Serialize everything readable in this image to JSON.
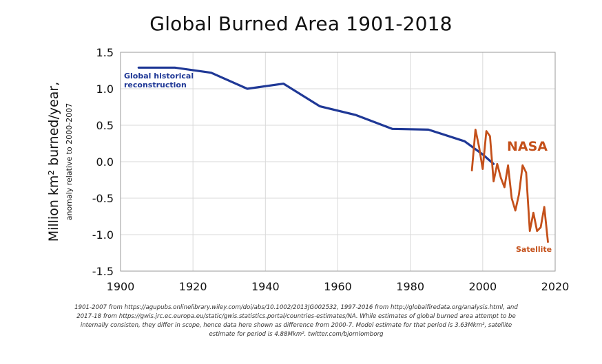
{
  "colors": {
    "reconstruction": "#1f3896",
    "satellite": "#c4501a",
    "grid": "#d9d9d9",
    "axis": "#9a9a9a"
  },
  "chart_data": {
    "type": "line",
    "title": "Global Burned Area 1901-2018",
    "ylabel": "Million km² burned/year,",
    "ylabel_sub": "anomaly relative to 2000-2007",
    "xlabel": "",
    "xlim": [
      1900,
      2020
    ],
    "ylim": [
      -1.5,
      1.5
    ],
    "x_ticks": [
      "1900",
      "1920",
      "1940",
      "1960",
      "1980",
      "2000",
      "2020"
    ],
    "x_tick_values": [
      1900,
      1920,
      1940,
      1960,
      1980,
      2000,
      2020
    ],
    "y_ticks": [
      "1.5",
      "1.0",
      "0.5",
      "0.0",
      "-0.5",
      "-1.0",
      "-1.5"
    ],
    "y_tick_values": [
      1.5,
      1.0,
      0.5,
      0.0,
      -0.5,
      -1.0,
      -1.5
    ],
    "grid": true,
    "series": [
      {
        "name": "Global historical reconstruction",
        "label_lines": [
          "Global historical",
          "reconstruction"
        ],
        "color": "#1f3896",
        "x": [
          1905,
          1915,
          1925,
          1935,
          1945,
          1955,
          1965,
          1975,
          1985,
          1995,
          2000,
          2003
        ],
        "y": [
          1.29,
          1.29,
          1.22,
          1.0,
          1.07,
          0.76,
          0.64,
          0.45,
          0.44,
          0.28,
          0.1,
          -0.03
        ]
      },
      {
        "name": "Satellite",
        "label_lines": [
          "Satellite"
        ],
        "annotation": "NASA",
        "color": "#c4501a",
        "x": [
          1997,
          1998,
          1999,
          2000,
          2001,
          2002,
          2003,
          2004,
          2005,
          2006,
          2007,
          2008,
          2009,
          2010,
          2011,
          2012,
          2013,
          2014,
          2015,
          2016,
          2017,
          2018
        ],
        "y": [
          -0.12,
          0.44,
          0.2,
          -0.1,
          0.42,
          0.35,
          -0.27,
          -0.03,
          -0.22,
          -0.35,
          -0.05,
          -0.5,
          -0.67,
          -0.45,
          -0.05,
          -0.15,
          -0.95,
          -0.7,
          -0.95,
          -0.9,
          -0.62,
          -1.1
        ]
      }
    ]
  },
  "footnote": {
    "lines": [
      "1901-2007 from https://agupubs.onlinelibrary.wiley.com/doi/abs/10.1002/2013JG002532, 1997-2016 from http://globalfiredata.org/analysis.html, and",
      "2017-18 from  https://gwis.jrc.ec.europa.eu/static/gwis.statistics.portal/countries-estimates/NA. While estimates of global burned area attempt to be",
      "internally consisten, they differ in scope, hence data here shown as difference from 2000-7. Model estimate for that period is 3.63Mkm², satellite",
      "estimate for period is 4.88Mkm². twitter.com/bjornlomborg"
    ]
  }
}
